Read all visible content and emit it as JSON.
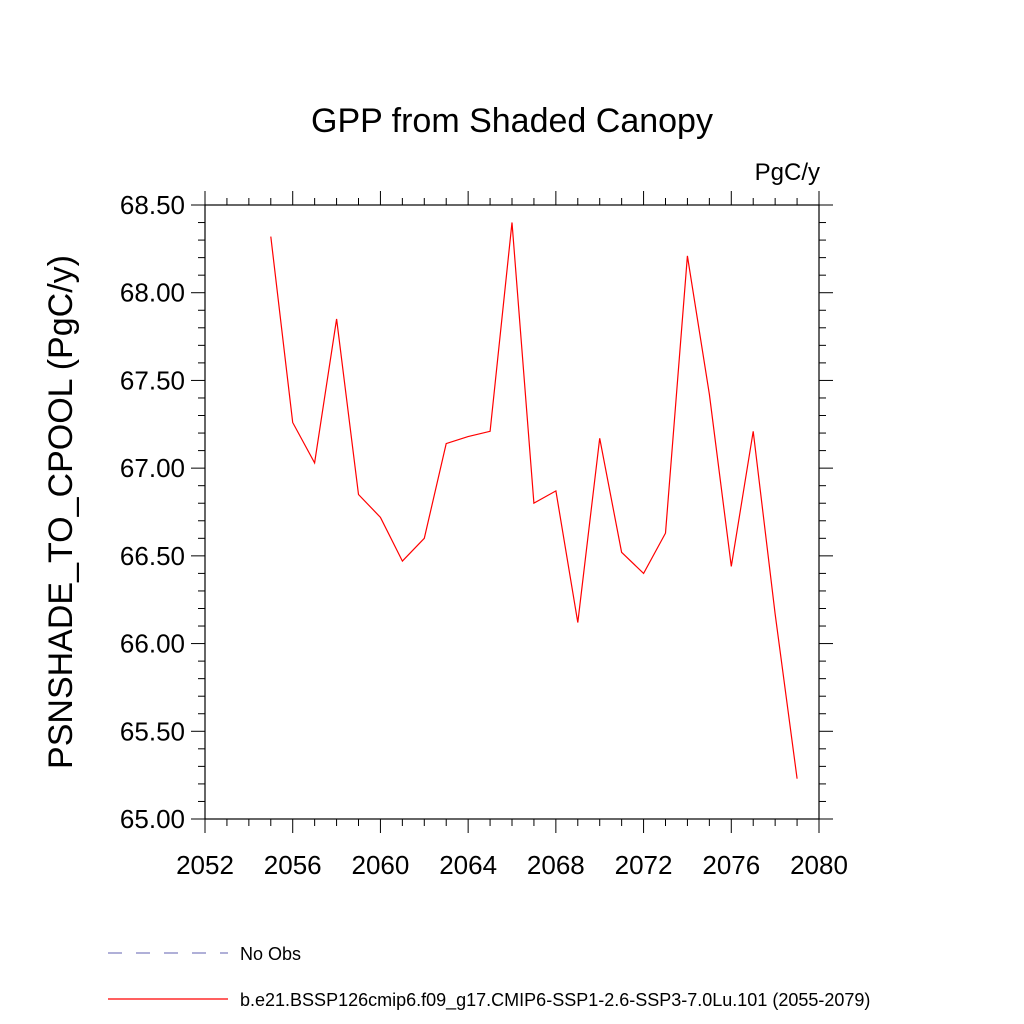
{
  "chart_data": {
    "type": "line",
    "title": "GPP from Shaded Canopy",
    "units_label": "PgC/y",
    "ylabel": "PSNSHADE_TO_CPOOL  (PgC/y)",
    "xlabel": "",
    "xlim": [
      2052,
      2080
    ],
    "ylim": [
      65.0,
      68.5
    ],
    "x_ticks": [
      "2052",
      "2056",
      "2060",
      "2064",
      "2068",
      "2072",
      "2076",
      "2080"
    ],
    "y_ticks": [
      "65.00",
      "65.50",
      "66.00",
      "66.50",
      "67.00",
      "67.50",
      "68.00",
      "68.50"
    ],
    "grid": false,
    "legend_position": "bottom",
    "series": [
      {
        "name": "b.e21.BSSP126cmip6.f09_g17.CMIP6-SSP1-2.6-SSP3-7.0Lu.101 (2055-2079)",
        "color": "#ff0000",
        "style": "solid",
        "x": [
          2055,
          2056,
          2057,
          2058,
          2059,
          2060,
          2061,
          2062,
          2063,
          2064,
          2065,
          2066,
          2067,
          2068,
          2069,
          2070,
          2071,
          2072,
          2073,
          2074,
          2075,
          2076,
          2077,
          2078,
          2079
        ],
        "y": [
          68.32,
          67.26,
          67.03,
          67.85,
          66.85,
          66.72,
          66.47,
          66.6,
          67.14,
          67.18,
          67.21,
          68.4,
          66.8,
          66.87,
          66.12,
          67.17,
          66.52,
          66.4,
          66.63,
          68.21,
          67.42,
          66.44,
          67.21,
          66.17,
          65.23
        ]
      }
    ],
    "legend": [
      {
        "label": "No Obs",
        "color": "#8080c0",
        "style": "dashed"
      },
      {
        "label": "b.e21.BSSP126cmip6.f09_g17.CMIP6-SSP1-2.6-SSP3-7.0Lu.101 (2055-2079)",
        "color": "#ff0000",
        "style": "solid"
      }
    ]
  }
}
